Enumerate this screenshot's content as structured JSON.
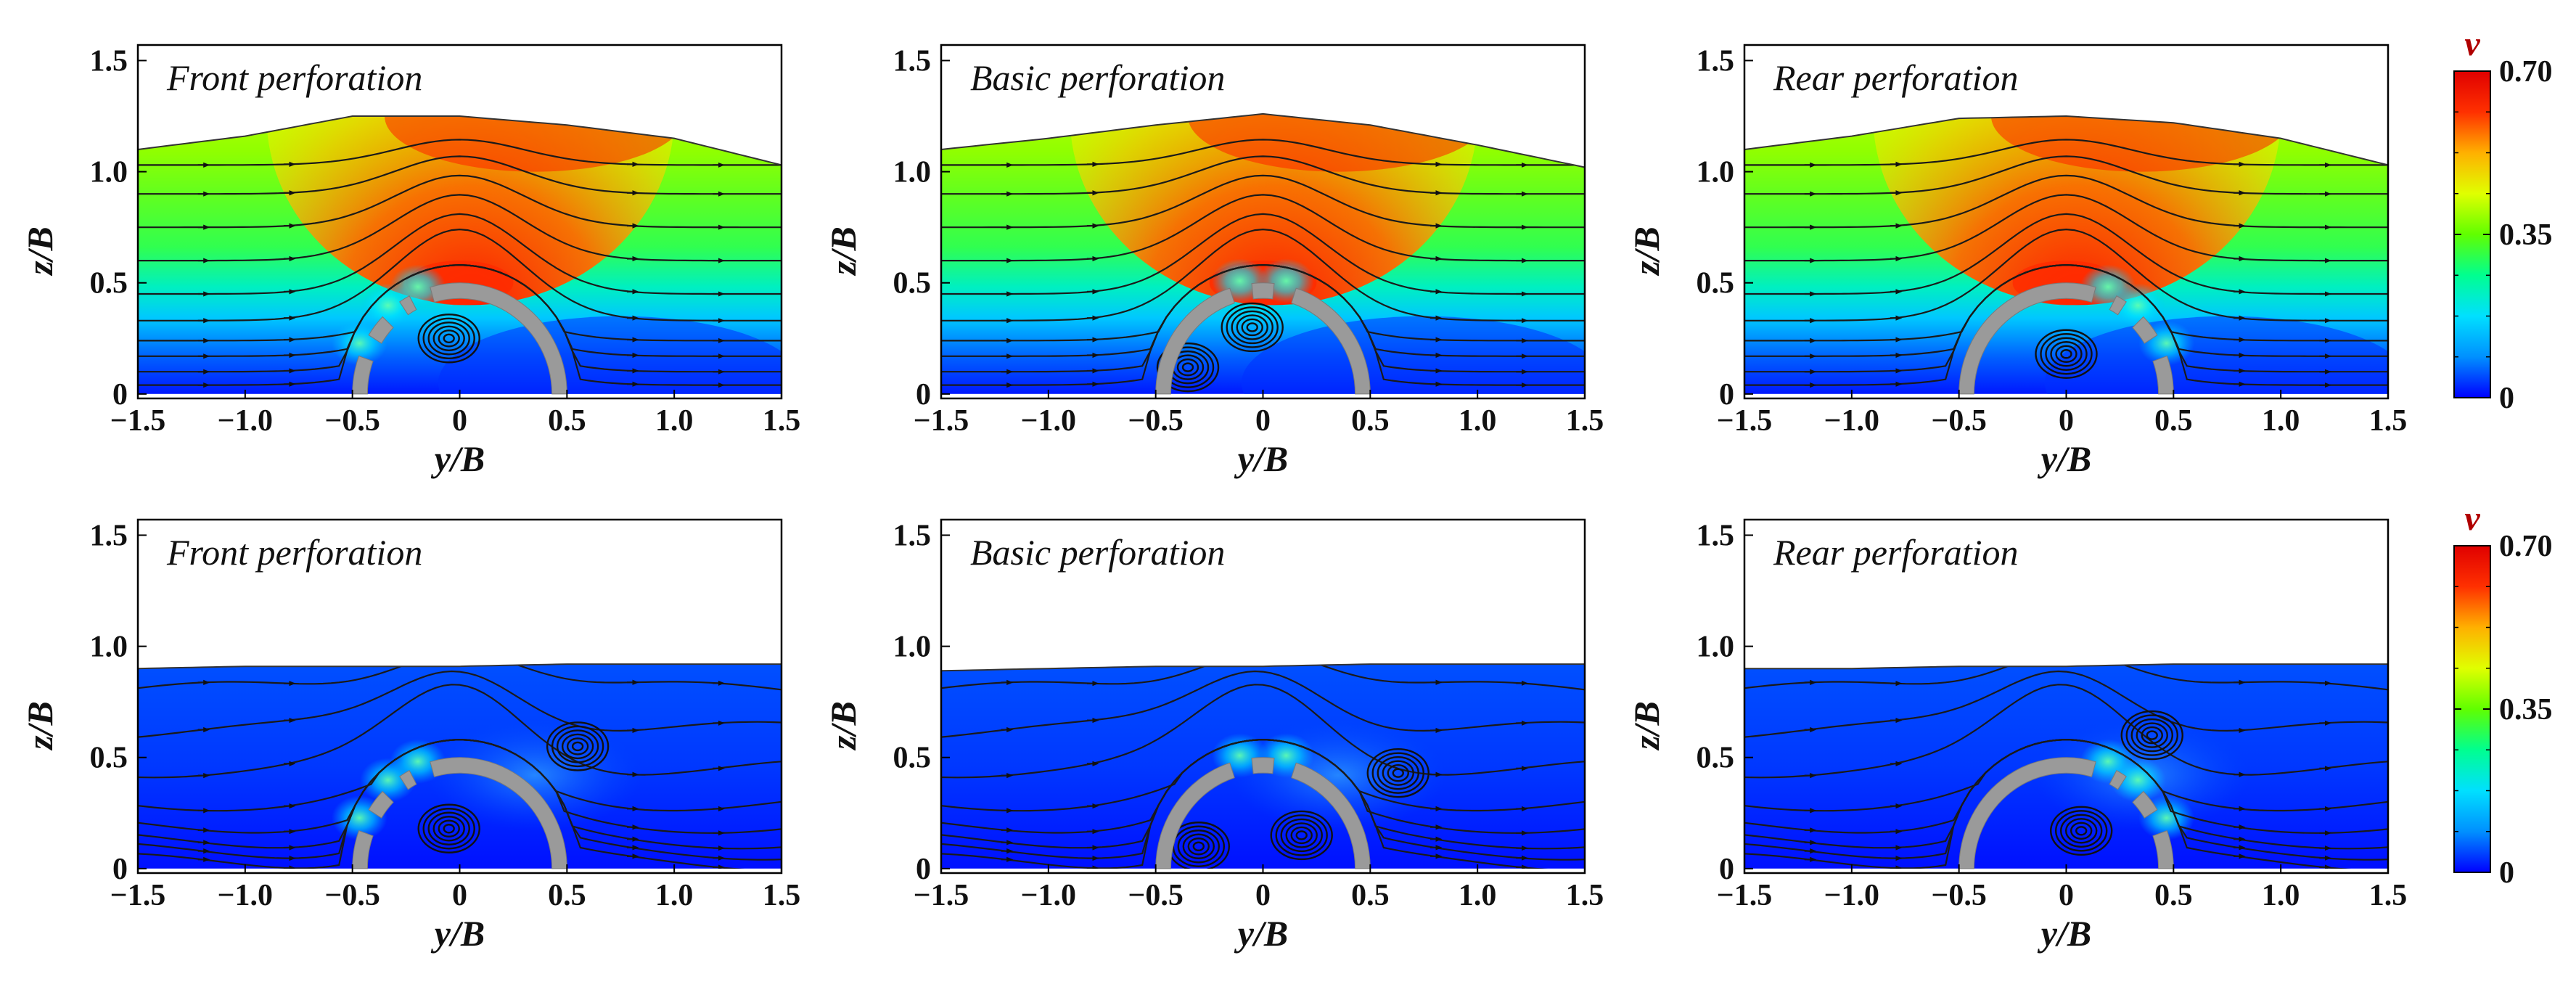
{
  "colorbar": {
    "title": "v",
    "ticks": [
      "0.70",
      "0.35",
      "0"
    ],
    "range": [
      0,
      0.7
    ],
    "stops": [
      "#0000ff",
      "#0090ff",
      "#00e0ff",
      "#00ff90",
      "#60ff00",
      "#e0ff00",
      "#ffb000",
      "#ff3000",
      "#e00000"
    ]
  },
  "axes": {
    "xlabel": "y/B",
    "ylabel": "z/B",
    "xticks": [
      "−1.5",
      "−1.0",
      "−0.5",
      "0",
      "0.5",
      "1.0",
      "1.5"
    ],
    "yticks": [
      "0",
      "0.5",
      "1.0",
      "1.5"
    ],
    "xlim": [
      -1.5,
      1.5
    ],
    "ylim": [
      -0.02,
      1.57
    ]
  },
  "chart_data": [
    {
      "type": "heatmap",
      "row": 0,
      "col": 0,
      "title": "Front perforation",
      "variant": "front",
      "regime": "high",
      "surface": {
        "y": [
          -1.5,
          -1.0,
          -0.5,
          0,
          0.5,
          1.0,
          1.5
        ],
        "z": [
          1.1,
          1.16,
          1.25,
          1.25,
          1.21,
          1.15,
          1.03
        ]
      }
    },
    {
      "type": "heatmap",
      "row": 0,
      "col": 1,
      "title": "Basic perforation",
      "variant": "basic",
      "regime": "high",
      "surface": {
        "y": [
          -1.5,
          -1.0,
          -0.5,
          0,
          0.5,
          1.0,
          1.5
        ],
        "z": [
          1.1,
          1.15,
          1.21,
          1.26,
          1.21,
          1.12,
          1.02
        ]
      }
    },
    {
      "type": "heatmap",
      "row": 0,
      "col": 2,
      "title": "Rear perforation",
      "variant": "rear",
      "regime": "high",
      "surface": {
        "y": [
          -1.5,
          -1.0,
          -0.5,
          0,
          0.5,
          1.0,
          1.5
        ],
        "z": [
          1.1,
          1.16,
          1.24,
          1.25,
          1.22,
          1.15,
          1.03
        ]
      }
    },
    {
      "type": "heatmap",
      "row": 1,
      "col": 0,
      "title": "Front perforation",
      "variant": "front",
      "regime": "low",
      "surface": {
        "y": [
          -1.5,
          -1.0,
          -0.5,
          0,
          0.5,
          1.0,
          1.5
        ],
        "z": [
          0.9,
          0.91,
          0.91,
          0.91,
          0.92,
          0.92,
          0.92
        ]
      }
    },
    {
      "type": "heatmap",
      "row": 1,
      "col": 1,
      "title": "Basic perforation",
      "variant": "basic",
      "regime": "low",
      "surface": {
        "y": [
          -1.5,
          -1.0,
          -0.5,
          0,
          0.5,
          1.0,
          1.5
        ],
        "z": [
          0.89,
          0.9,
          0.91,
          0.91,
          0.92,
          0.92,
          0.92
        ]
      }
    },
    {
      "type": "heatmap",
      "row": 1,
      "col": 2,
      "title": "Rear perforation",
      "variant": "rear",
      "regime": "low",
      "surface": {
        "y": [
          -1.5,
          -1.0,
          -0.5,
          0,
          0.5,
          1.0,
          1.5
        ],
        "z": [
          0.9,
          0.9,
          0.91,
          0.91,
          0.92,
          0.92,
          0.92
        ]
      }
    }
  ]
}
